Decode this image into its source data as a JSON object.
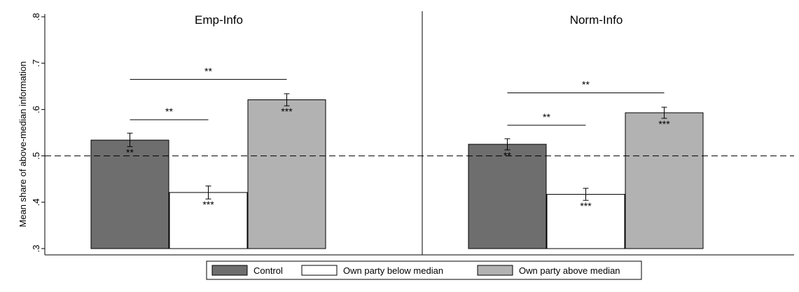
{
  "chart_data": {
    "type": "bar",
    "ylabel": "Mean share of above-median information",
    "ylim": [
      0.3,
      0.8
    ],
    "yticks": [
      {
        "value": 0.3,
        "label": ".3"
      },
      {
        "value": 0.4,
        "label": ".4"
      },
      {
        "value": 0.5,
        "label": ".5"
      },
      {
        "value": 0.6,
        "label": ".6"
      },
      {
        "value": 0.7,
        "label": ".7"
      },
      {
        "value": 0.8,
        "label": ".8"
      }
    ],
    "reference_line": 0.5,
    "grid": false,
    "legend_position": "bottom",
    "series": [
      {
        "name": "Control",
        "color": "#6e6e6e"
      },
      {
        "name": "Own party below median",
        "color": "#ffffff"
      },
      {
        "name": "Own party above median",
        "color": "#b2b2b2"
      }
    ],
    "panels": [
      {
        "title": "Emp-Info",
        "bars": [
          {
            "value": 0.534,
            "ci_low": 0.52,
            "ci_high": 0.549,
            "stars": "**"
          },
          {
            "value": 0.421,
            "ci_low": 0.407,
            "ci_high": 0.435,
            "stars": "***"
          },
          {
            "value": 0.621,
            "ci_low": 0.608,
            "ci_high": 0.634,
            "stars": "***"
          }
        ],
        "brackets": [
          {
            "from": 0,
            "to": 1,
            "y": 0.578,
            "label": "**"
          },
          {
            "from": 0,
            "to": 2,
            "y": 0.665,
            "label": "**"
          }
        ]
      },
      {
        "title": "Norm-Info",
        "bars": [
          {
            "value": 0.525,
            "ci_low": 0.513,
            "ci_high": 0.537,
            "stars": "**"
          },
          {
            "value": 0.417,
            "ci_low": 0.404,
            "ci_high": 0.43,
            "stars": "***"
          },
          {
            "value": 0.593,
            "ci_low": 0.581,
            "ci_high": 0.605,
            "stars": "***"
          }
        ],
        "brackets": [
          {
            "from": 0,
            "to": 1,
            "y": 0.566,
            "label": "**"
          },
          {
            "from": 0,
            "to": 2,
            "y": 0.636,
            "label": "**"
          }
        ]
      }
    ]
  }
}
